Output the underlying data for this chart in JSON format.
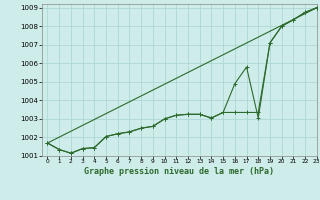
{
  "title": "Graphe pression niveau de la mer (hPa)",
  "background_color": "#ceecea",
  "grid_color": "#add8d4",
  "line_color": "#2d6a2d",
  "xlim": [
    -0.5,
    23
  ],
  "ylim": [
    1001,
    1009.2
  ],
  "yticks": [
    1001,
    1002,
    1003,
    1004,
    1005,
    1006,
    1007,
    1008,
    1009
  ],
  "xticks": [
    0,
    1,
    2,
    3,
    4,
    5,
    6,
    7,
    8,
    9,
    10,
    11,
    12,
    13,
    14,
    15,
    16,
    17,
    18,
    19,
    20,
    21,
    22,
    23
  ],
  "hours": [
    0,
    1,
    2,
    3,
    4,
    5,
    6,
    7,
    8,
    9,
    10,
    11,
    12,
    13,
    14,
    15,
    16,
    17,
    18,
    19,
    20,
    21,
    22,
    23
  ],
  "line1": [
    1001.7,
    1001.35,
    1001.15,
    1001.4,
    1001.45,
    1002.05,
    1002.2,
    1002.3,
    1002.5,
    1002.6,
    1003.0,
    1003.2,
    1003.25,
    1003.25,
    1003.05,
    1003.35,
    1003.35,
    1003.35,
    1003.35,
    1007.1,
    1008.0,
    1008.35,
    1008.75,
    1009.0
  ],
  "line2": [
    1001.7,
    1001.35,
    1001.15,
    1001.4,
    1001.45,
    1002.05,
    1002.2,
    1002.3,
    1002.5,
    1002.6,
    1003.0,
    1003.2,
    1003.25,
    1003.25,
    1003.05,
    1003.35,
    1004.9,
    1005.8,
    1003.05,
    1007.1,
    1008.0,
    1008.35,
    1008.75,
    1009.0
  ],
  "line3_x": [
    0,
    23
  ],
  "line3_y": [
    1001.7,
    1009.0
  ]
}
